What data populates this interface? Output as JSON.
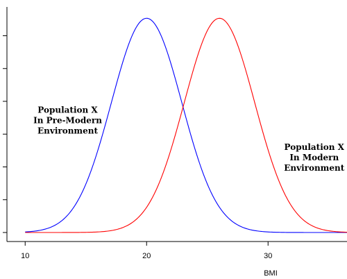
{
  "chart_data": {
    "type": "line",
    "title": "",
    "xlabel": "BMI",
    "ylabel": "",
    "xlim": [
      8.5,
      36.5
    ],
    "ylim": [
      0,
      1
    ],
    "x_ticks": [
      10,
      20,
      30
    ],
    "x_tick_labels": [
      "10",
      "20",
      "30"
    ],
    "y_ticks": [
      0,
      0.15,
      0.3,
      0.45,
      0.6,
      0.75,
      0.9
    ],
    "grid": false,
    "legend": "none",
    "series": [
      {
        "curve": "normal",
        "color": "#0000ff",
        "mean": 20,
        "sd": 2.9,
        "peak": 0.98,
        "x_range": [
          10,
          36.5
        ]
      },
      {
        "curve": "normal",
        "color": "#ff0000",
        "mean": 26,
        "sd": 2.9,
        "peak": 0.98,
        "x_range": [
          10,
          36.5
        ]
      }
    ],
    "annotations": [
      {
        "lines": [
          "Population X",
          "In Pre-Modern",
          "Environment"
        ],
        "x": 13.5,
        "y": 0.5
      },
      {
        "lines": [
          "Population X",
          "In Modern",
          "Environment"
        ],
        "x": 33.8,
        "y": 0.33
      }
    ]
  }
}
